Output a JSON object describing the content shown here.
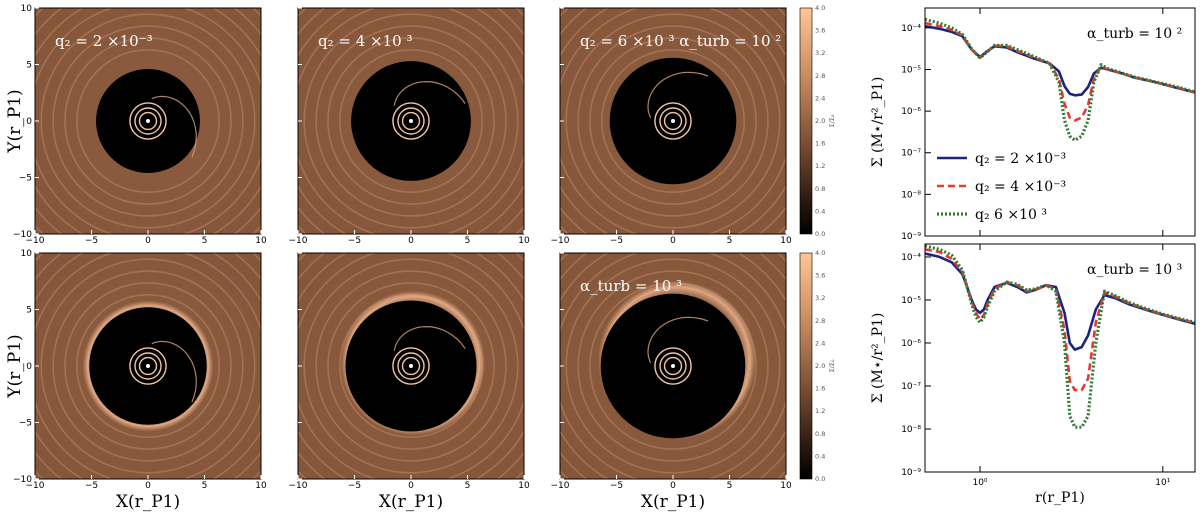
{
  "colors": {
    "disk_base": "#8c5a3c",
    "ring": "#d9a27c",
    "gap": "#000000",
    "q2_2e-3": "#1a237e",
    "q2_4e-3": "#e53935",
    "q2_6e-3": "#2e7d32"
  },
  "maps": {
    "x_axis_label": "X(r_P1)",
    "y_axis_label": "Y(r_P1)",
    "xlim": [
      -10,
      10
    ],
    "ylim": [
      -10,
      10
    ],
    "xticks": [
      "−10",
      "−5",
      "0",
      "5",
      "10"
    ],
    "yticks": [
      "10",
      "5",
      "0",
      "−5",
      "−10"
    ],
    "panels": [
      {
        "row": 0,
        "col": 0,
        "label": "q₂ = 2 ×10⁻³",
        "gap_radius": 4.6
      },
      {
        "row": 0,
        "col": 1,
        "label": "q₂ = 4 ×10  ³",
        "gap_radius": 5.3
      },
      {
        "row": 0,
        "col": 2,
        "label": "q₂ = 6 ×10  ³ α_turb = 10  ²",
        "gap_radius": 5.6
      },
      {
        "row": 1,
        "col": 0,
        "label": "",
        "gap_radius": 5.2
      },
      {
        "row": 1,
        "col": 1,
        "label": "",
        "gap_radius": 5.8
      },
      {
        "row": 1,
        "col": 2,
        "label": "α_turb = 10  ³",
        "gap_radius": 6.4
      }
    ]
  },
  "colorbar": {
    "label": "Σ/Σ₀",
    "ticks": [
      "4.0",
      "3.6",
      "3.2",
      "2.8",
      "2.4",
      "2.0",
      "1.6",
      "1.2",
      "0.8",
      "0.4",
      "0.0"
    ],
    "range": [
      0,
      4.0
    ]
  },
  "chart_data": [
    {
      "type": "line",
      "panel": "top-right",
      "annotation": "α_turb = 10  ²",
      "xlabel": "r(r_P1)",
      "ylabel": "Σ (M⋆/r²_P1)",
      "xscale": "log",
      "yscale": "log",
      "xlim": [
        0.5,
        15
      ],
      "ylim": [
        1e-09,
        0.0003
      ],
      "xticks": [],
      "yticks": [
        "10⁻⁴",
        "10⁻⁵",
        "10⁻⁶",
        "10⁻⁷",
        "10⁻⁸",
        "10⁻⁹"
      ],
      "legend": {
        "position": "center-left",
        "entries": [
          "q₂ = 2 ×10⁻³",
          "q₂ = 4 ×10⁻³",
          "q₂   6 ×10  ³"
        ]
      },
      "series": [
        {
          "name": "q₂ = 2 ×10⁻³",
          "style": "solid",
          "x": [
            0.5,
            0.6,
            0.7,
            0.8,
            0.9,
            1.0,
            1.1,
            1.2,
            1.4,
            1.6,
            2.0,
            2.4,
            2.7,
            2.9,
            3.1,
            3.3,
            3.6,
            3.9,
            4.2,
            4.6,
            5.0,
            6.0,
            7.0,
            9.0,
            12.0,
            15.0
          ],
          "y": [
            0.00011,
            9.5e-05,
            8e-05,
            6.3e-05,
            3e-05,
            2e-05,
            2.8e-05,
            3.6e-05,
            3.4e-05,
            2.6e-05,
            1.8e-05,
            1.4e-05,
            9e-06,
            4e-06,
            2.6e-06,
            2.4e-06,
            2.5e-06,
            3.8e-06,
            8e-06,
            1.1e-05,
            1e-05,
            8e-06,
            6.4e-06,
            5e-06,
            3.6e-06,
            2.8e-06
          ]
        },
        {
          "name": "q₂ = 4 ×10⁻³",
          "style": "dashed",
          "x": [
            0.5,
            0.6,
            0.7,
            0.8,
            0.9,
            1.0,
            1.1,
            1.2,
            1.4,
            1.6,
            2.0,
            2.4,
            2.7,
            2.9,
            3.1,
            3.3,
            3.6,
            3.9,
            4.2,
            4.6,
            5.0,
            6.0,
            7.0,
            9.0,
            12.0,
            15.0
          ],
          "y": [
            0.00013,
            0.00011,
            9e-05,
            6.6e-05,
            3e-05,
            1.9e-05,
            2.7e-05,
            3.7e-05,
            3.6e-05,
            2.8e-05,
            1.9e-05,
            1.4e-05,
            6e-06,
            1.5e-06,
            7e-07,
            6e-07,
            7e-07,
            1.4e-06,
            6e-06,
            1.2e-05,
            1e-05,
            8e-06,
            6.5e-06,
            5e-06,
            3.7e-06,
            2.8e-06
          ]
        },
        {
          "name": "q₂   6 ×10  ³",
          "style": "dotted",
          "x": [
            0.5,
            0.6,
            0.7,
            0.8,
            0.9,
            1.0,
            1.1,
            1.2,
            1.4,
            1.6,
            2.0,
            2.4,
            2.7,
            2.9,
            3.1,
            3.3,
            3.6,
            3.9,
            4.2,
            4.6,
            5.0,
            6.0,
            7.0,
            9.0,
            12.0,
            15.0
          ],
          "y": [
            0.00016,
            0.00013,
            0.0001,
            7e-05,
            3.1e-05,
            1.9e-05,
            2.7e-05,
            3.8e-05,
            3.8e-05,
            3e-05,
            2e-05,
            1.4e-05,
            5e-06,
            6e-07,
            2.5e-07,
            2e-07,
            2.5e-07,
            6e-07,
            5e-06,
            1.3e-05,
            1.05e-05,
            8.2e-06,
            6.6e-06,
            5.1e-06,
            3.8e-06,
            2.9e-06
          ]
        }
      ]
    },
    {
      "type": "line",
      "panel": "bottom-right",
      "annotation": "α_turb = 10  ³",
      "xlabel": "r(r_P1)",
      "ylabel": "Σ (M⋆/r²_P1)",
      "xscale": "log",
      "yscale": "log",
      "xlim": [
        0.5,
        15
      ],
      "ylim": [
        1e-09,
        0.0002
      ],
      "xticks": [
        "10⁰",
        "10¹"
      ],
      "yticks": [
        "10⁻⁴",
        "10⁻⁵",
        "10⁻⁶",
        "10⁻⁷",
        "10⁻⁸",
        "10⁻⁹"
      ],
      "series": [
        {
          "name": "q₂ = 2 ×10⁻³",
          "style": "solid",
          "x": [
            0.5,
            0.6,
            0.7,
            0.8,
            0.85,
            0.9,
            0.95,
            1.0,
            1.05,
            1.1,
            1.2,
            1.4,
            1.6,
            1.8,
            2.0,
            2.3,
            2.6,
            2.9,
            3.1,
            3.3,
            3.6,
            3.9,
            4.3,
            4.8,
            5.5,
            6.5,
            8.0,
            10.0,
            12.0,
            15.0
          ],
          "y": [
            0.00012,
            0.0001,
            7.5e-05,
            4e-05,
            2e-05,
            1e-05,
            6e-06,
            5e-06,
            6e-06,
            1e-05,
            2e-05,
            2.5e-05,
            2e-05,
            1.5e-05,
            1.7e-05,
            2.2e-05,
            2e-05,
            5e-06,
            1e-06,
            7e-07,
            8e-07,
            1.5e-06,
            6e-06,
            1.3e-05,
            1.1e-05,
            8e-06,
            6e-06,
            4.5e-06,
            3.6e-06,
            2.8e-06
          ]
        },
        {
          "name": "q₂ = 4 ×10⁻³",
          "style": "dashed",
          "x": [
            0.5,
            0.6,
            0.7,
            0.8,
            0.85,
            0.9,
            0.95,
            1.0,
            1.05,
            1.1,
            1.2,
            1.4,
            1.6,
            1.8,
            2.0,
            2.3,
            2.6,
            2.9,
            3.1,
            3.3,
            3.6,
            3.9,
            4.3,
            4.8,
            5.5,
            6.5,
            8.0,
            10.0,
            12.0,
            15.0
          ],
          "y": [
            0.00015,
            0.00013,
            9e-05,
            4.5e-05,
            2e-05,
            9e-06,
            5e-06,
            3.5e-06,
            4.5e-06,
            8e-06,
            1.8e-05,
            2.6e-05,
            2.2e-05,
            1.6e-05,
            1.7e-05,
            2.2e-05,
            1.8e-05,
            2e-06,
            1.3e-07,
            8e-08,
            8e-08,
            1.5e-07,
            3e-06,
            1.5e-05,
            1.2e-05,
            8.5e-06,
            6.2e-06,
            4.6e-06,
            3.7e-06,
            2.9e-06
          ]
        },
        {
          "name": "q₂   6 ×10  ³",
          "style": "dotted",
          "x": [
            0.5,
            0.6,
            0.7,
            0.8,
            0.85,
            0.9,
            0.95,
            1.0,
            1.05,
            1.1,
            1.2,
            1.4,
            1.6,
            1.8,
            2.0,
            2.3,
            2.6,
            2.9,
            3.1,
            3.3,
            3.6,
            3.9,
            4.3,
            4.8,
            5.5,
            6.5,
            8.0,
            10.0,
            12.0,
            15.0
          ],
          "y": [
            0.00018,
            0.00015,
            0.00011,
            5e-05,
            2e-05,
            8e-06,
            4e-06,
            3e-06,
            4e-06,
            7e-06,
            1.6e-05,
            2.6e-05,
            2.3e-05,
            1.7e-05,
            1.8e-05,
            2.2e-05,
            1.6e-05,
            1e-06,
            2e-08,
            1.1e-08,
            1.1e-08,
            2e-08,
            1e-06,
            1.6e-05,
            1.25e-05,
            8.8e-06,
            6.4e-06,
            4.7e-06,
            3.8e-06,
            3e-06
          ]
        }
      ]
    }
  ]
}
